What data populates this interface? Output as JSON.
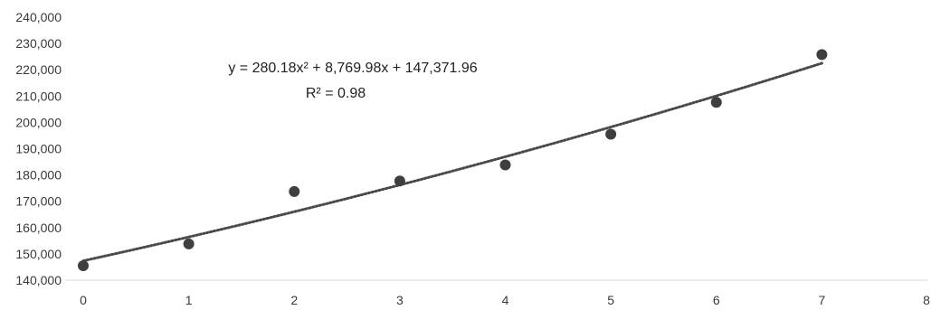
{
  "chart_data": {
    "type": "scatter",
    "title": "",
    "xlabel": "",
    "ylabel": "",
    "xlim": [
      0,
      8
    ],
    "ylim": [
      140000,
      240000
    ],
    "x_ticks": [
      0,
      1,
      2,
      3,
      4,
      5,
      6,
      7,
      8
    ],
    "x_tick_labels": [
      "0",
      "1",
      "2",
      "3",
      "4",
      "5",
      "6",
      "7",
      "8"
    ],
    "y_ticks": [
      140000,
      150000,
      160000,
      170000,
      180000,
      190000,
      200000,
      210000,
      220000,
      230000,
      240000
    ],
    "y_tick_labels": [
      "140,000",
      "150,000",
      "160,000",
      "170,000",
      "180,000",
      "190,000",
      "200,000",
      "210,000",
      "220,000",
      "230,000",
      "240,000"
    ],
    "grid": false,
    "series": [
      {
        "x": [
          0,
          1,
          2,
          3,
          4,
          5,
          6,
          7
        ],
        "y": [
          145500,
          153800,
          173700,
          177700,
          183800,
          195500,
          207600,
          225800
        ],
        "color": "#3f3f3f"
      }
    ],
    "trendline": {
      "type": "polynomial",
      "order": 2,
      "coefficients": [
        280.18,
        8769.98,
        147371.96
      ],
      "x_range": [
        0,
        7
      ],
      "style": "dotted",
      "color": "#4a4a4a",
      "equation_label": "y = 280.18x² + 8,769.98x + 147,371.96",
      "r2_label": "R² = 0.98"
    }
  }
}
